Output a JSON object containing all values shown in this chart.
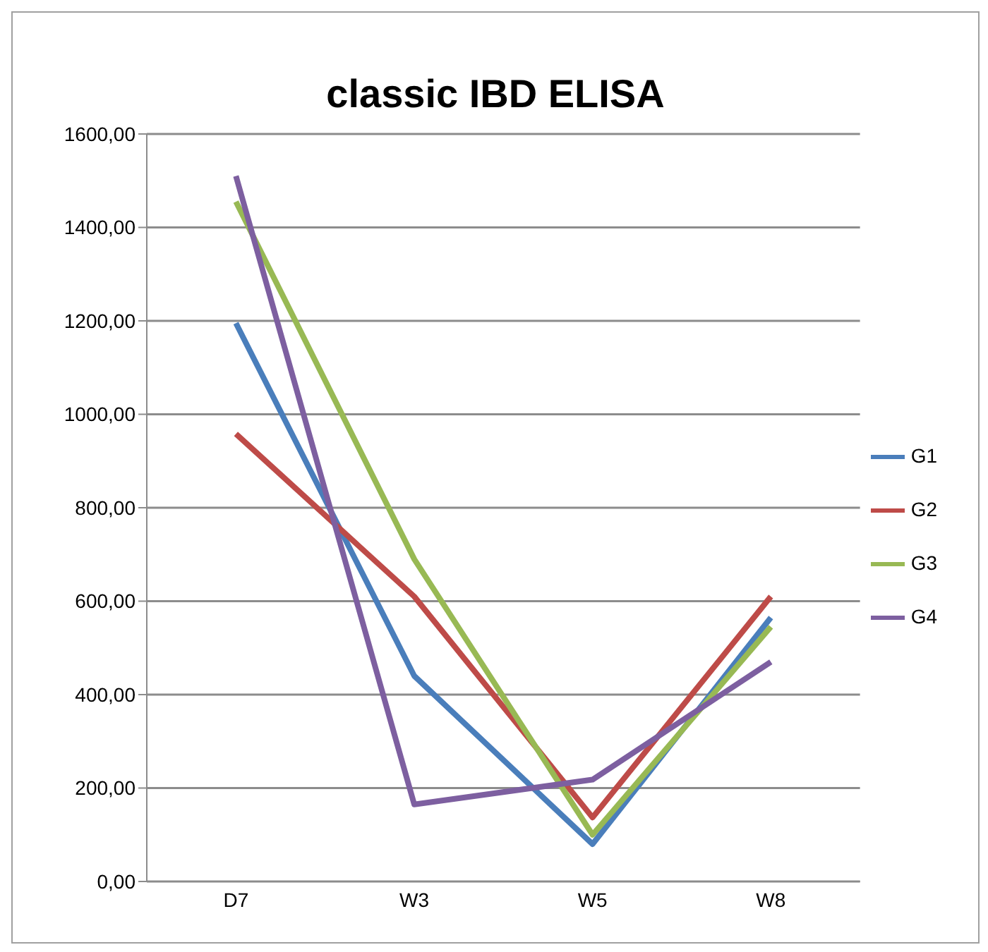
{
  "chart_data": {
    "type": "line",
    "title": "classic IBD ELISA",
    "categories": [
      "D7",
      "W3",
      "W5",
      "W8"
    ],
    "series": [
      {
        "name": "G1",
        "color": "#4a7ebb",
        "values": [
          1195,
          440,
          80,
          565
        ]
      },
      {
        "name": "G2",
        "color": "#be4b48",
        "values": [
          958,
          610,
          137,
          610
        ]
      },
      {
        "name": "G3",
        "color": "#98b954",
        "values": [
          1455,
          690,
          100,
          545
        ]
      },
      {
        "name": "G4",
        "color": "#7d5fa0",
        "values": [
          1510,
          165,
          218,
          470
        ]
      }
    ],
    "ylim": [
      0,
      1600
    ],
    "yticks": [
      {
        "value": 0,
        "label": "0,00"
      },
      {
        "value": 200,
        "label": "200,00"
      },
      {
        "value": 400,
        "label": "400,00"
      },
      {
        "value": 600,
        "label": "600,00"
      },
      {
        "value": 800,
        "label": "800,00"
      },
      {
        "value": 1000,
        "label": "1000,00"
      },
      {
        "value": 1200,
        "label": "1200,00"
      },
      {
        "value": 1400,
        "label": "1400,00"
      },
      {
        "value": 1600,
        "label": "1600,00"
      }
    ],
    "grid": "y",
    "legend": "right",
    "marker": "none",
    "line_style": "solid"
  }
}
